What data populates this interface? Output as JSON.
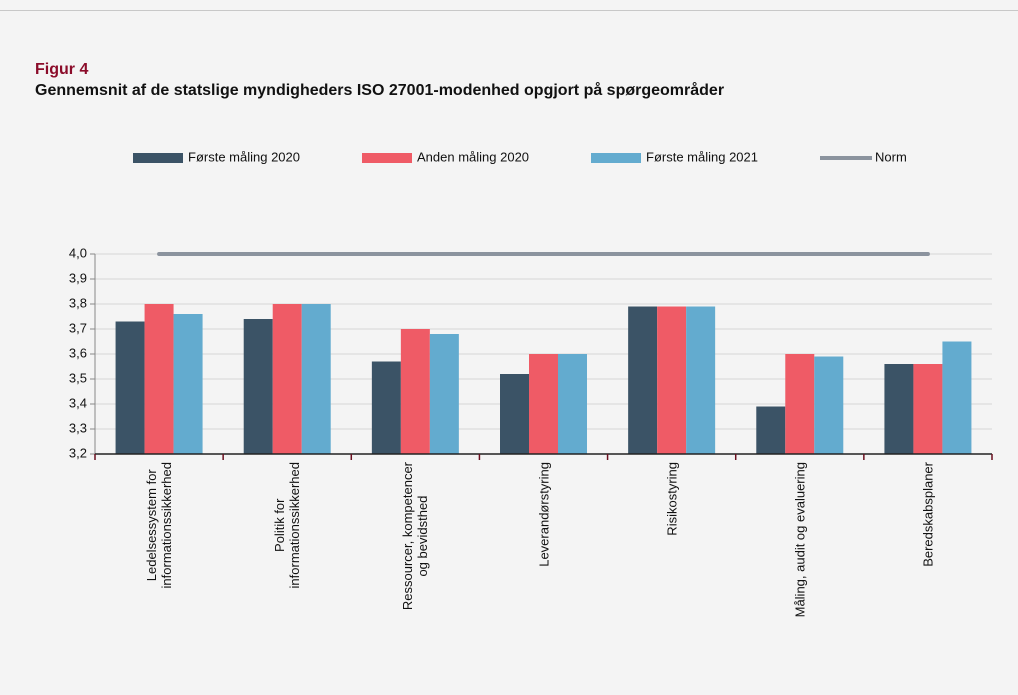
{
  "chart_data": {
    "type": "bar",
    "label": "Figur 4",
    "title": "Gennemsnit af de statslige myndigheders ISO 27001-modenhed opgjort på spørgeområder",
    "categories": [
      "Ledelsessystem for\ninformationssikkerhed",
      "Politik for\ninformationssikkerhed",
      "Ressourcer, kompetencer\nog bevidsthed",
      "Leverandørstyring",
      "Risikostyring",
      "Måling, audit og evaluering",
      "Beredskabsplaner"
    ],
    "series": [
      {
        "name": "Første måling 2020",
        "color": "#3b5366",
        "values": [
          3.73,
          3.74,
          3.57,
          3.52,
          3.79,
          3.39,
          3.56
        ]
      },
      {
        "name": "Anden måling 2020",
        "color": "#ef5b66",
        "values": [
          3.8,
          3.8,
          3.7,
          3.6,
          3.79,
          3.6,
          3.56
        ]
      },
      {
        "name": "Første måling 2021",
        "color": "#63abcf",
        "values": [
          3.76,
          3.8,
          3.68,
          3.6,
          3.79,
          3.59,
          3.65
        ]
      },
      {
        "name": "Norm",
        "type": "line",
        "color": "#8b939e",
        "values": [
          4.0,
          4.0,
          4.0,
          4.0,
          4.0,
          4.0,
          4.0
        ]
      }
    ],
    "ylim": [
      3.2,
      4.0
    ],
    "yticks": [
      {
        "value": 3.2,
        "label": "3,2"
      },
      {
        "value": 3.3,
        "label": "3,3"
      },
      {
        "value": 3.4,
        "label": "3,4"
      },
      {
        "value": 3.5,
        "label": "3,5"
      },
      {
        "value": 3.6,
        "label": "3,6"
      },
      {
        "value": 3.7,
        "label": "3,7"
      },
      {
        "value": 3.8,
        "label": "3,8"
      },
      {
        "value": 3.9,
        "label": "3,9"
      },
      {
        "value": 4.0,
        "label": "4,0"
      }
    ],
    "grid": true,
    "legend": "top"
  }
}
